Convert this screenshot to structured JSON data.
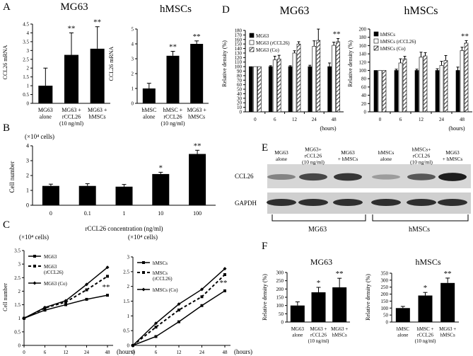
{
  "panels": {
    "A": "A",
    "B": "B",
    "C": "C",
    "D": "D",
    "E": "E",
    "F": "F"
  },
  "chart_data": [
    {
      "id": "A1",
      "type": "bar",
      "title": "MG63",
      "ylabel": "CCL26 mRNA",
      "ylim": [
        0,
        4.5
      ],
      "yticks": [
        "0",
        "0.5",
        "1",
        "1.5",
        "2",
        "2.5",
        "3",
        "3.5",
        "4",
        "4.5"
      ],
      "categories": [
        [
          "MG63",
          "alone"
        ],
        [
          "MG63 +",
          "rCCL26",
          "(10 ng/ml)"
        ],
        [
          "MG63 +",
          "hMSCs"
        ]
      ],
      "values": [
        1.0,
        2.75,
        3.1
      ],
      "errors": [
        1.0,
        1.25,
        1.25
      ],
      "sig": [
        "",
        "**",
        "**"
      ]
    },
    {
      "id": "A2",
      "type": "bar",
      "title": "hMSCs",
      "ylabel": "CCL26 mRNA",
      "ylim": [
        0,
        5
      ],
      "yticks": [
        "0",
        "1",
        "2",
        "3",
        "4",
        "5"
      ],
      "categories": [
        [
          "hMSC",
          "alone"
        ],
        [
          "hMSC +",
          "rCCL26",
          "(10 ng/ml)"
        ],
        [
          "MG63 +",
          "hMSCs"
        ]
      ],
      "values": [
        1.0,
        3.2,
        4.0
      ],
      "errors": [
        0.35,
        0.3,
        0.2
      ],
      "sig": [
        "",
        "**",
        "**"
      ]
    },
    {
      "id": "B",
      "type": "bar",
      "unit_note": "(×10⁴ cells)",
      "ylabel": "Cell number",
      "xlabel": "rCCL26 concentration (ng/ml)",
      "ylim": [
        0,
        4
      ],
      "yticks": [
        "0",
        "1",
        "2",
        "3",
        "4"
      ],
      "categories": [
        "0",
        "0.1",
        "1",
        "10",
        "100"
      ],
      "values": [
        1.3,
        1.3,
        1.25,
        2.1,
        3.45
      ],
      "errors": [
        0.12,
        0.15,
        0.15,
        0.12,
        0.25
      ],
      "sig": [
        "",
        "",
        "",
        "*",
        "**"
      ]
    },
    {
      "id": "C1",
      "type": "line",
      "unit_note": "(×10⁴ cells)",
      "ylabel": "Cell number",
      "xlabel": "(hours)",
      "ylim": [
        0,
        3.5
      ],
      "yticks": [
        "0",
        "0.5",
        "1",
        "1.5",
        "2",
        "2.5",
        "3",
        "3.5"
      ],
      "x": [
        "0",
        "6",
        "12",
        "24",
        "48"
      ],
      "series": [
        {
          "name": "MG63",
          "values": [
            1.0,
            1.3,
            1.5,
            1.7,
            1.85
          ],
          "style": "solid",
          "marker": "square"
        },
        {
          "name": "MG63 (rCCL26)",
          "values": [
            1.0,
            1.38,
            1.6,
            2.05,
            2.55
          ],
          "style": "dashed",
          "marker": "square"
        },
        {
          "name": "MG63 (Co)",
          "values": [
            1.0,
            1.4,
            1.65,
            2.25,
            2.88
          ],
          "style": "solid",
          "marker": "diamond"
        }
      ],
      "sig": "**"
    },
    {
      "id": "C2",
      "type": "line",
      "unit_note": "(×10⁴ cells)",
      "xlabel": "(hours)",
      "ylim": [
        0,
        3
      ],
      "yticks": [
        "0",
        "0.5",
        "1",
        "1.5",
        "2",
        "2.5",
        "3"
      ],
      "x": [
        "0",
        "6",
        "12",
        "24",
        "48"
      ],
      "series": [
        {
          "name": "hMSCs",
          "values": [
            0.0,
            0.3,
            0.8,
            1.35,
            1.85
          ],
          "style": "solid",
          "marker": "square"
        },
        {
          "name": "hMSCs (rCCL26)",
          "values": [
            0.0,
            0.62,
            1.2,
            1.65,
            2.4
          ],
          "style": "dashed",
          "marker": "square"
        },
        {
          "name": "hMSCs (Co)",
          "values": [
            0.0,
            0.75,
            1.4,
            1.9,
            2.6
          ],
          "style": "solid",
          "marker": "diamond"
        }
      ],
      "sig": "**"
    },
    {
      "id": "D1",
      "type": "bar",
      "title": "MG63",
      "ylabel": "Relative density (%)",
      "xlabel": "(hours)",
      "ylim": [
        0,
        180
      ],
      "yticks": [
        "0",
        "10",
        "20",
        "30",
        "40",
        "50",
        "60",
        "70",
        "80",
        "90",
        "100",
        "110",
        "120",
        "130",
        "140",
        "150",
        "160",
        "170",
        "180"
      ],
      "categories": [
        "0",
        "6",
        "12",
        "24",
        "48"
      ],
      "series": [
        {
          "name": "MG63",
          "values": [
            100,
            100,
            100,
            100,
            100
          ],
          "errors": [
            0,
            2,
            2,
            3,
            8
          ],
          "fill": "black"
        },
        {
          "name": "MG63 (rCCL26)",
          "values": [
            100,
            115,
            130,
            145,
            147
          ],
          "errors": [
            0,
            8,
            5,
            12,
            7
          ],
          "fill": "white"
        },
        {
          "name": "MG63 (Co)",
          "values": [
            100,
            117,
            150,
            158,
            155
          ],
          "errors": [
            0,
            8,
            5,
            25,
            7
          ],
          "fill": "hatch"
        }
      ],
      "sig": "**"
    },
    {
      "id": "D2",
      "type": "bar",
      "title": "hMSCs",
      "ylabel": "Relative density (%)",
      "xlabel": "(hours)",
      "ylim": [
        0,
        200
      ],
      "yticks": [
        "0",
        "20",
        "40",
        "60",
        "80",
        "100",
        "120",
        "140",
        "160",
        "180",
        "200"
      ],
      "categories": [
        "0",
        "6",
        "12",
        "24",
        "48"
      ],
      "series": [
        {
          "name": "hMSCs",
          "values": [
            100,
            100,
            100,
            100,
            100
          ],
          "errors": [
            0,
            3,
            3,
            4,
            8
          ],
          "fill": "black"
        },
        {
          "name": "hMSCs (rCCL26)",
          "values": [
            100,
            118,
            132,
            112,
            148
          ],
          "errors": [
            0,
            10,
            12,
            10,
            8
          ],
          "fill": "white"
        },
        {
          "name": "hMSCs (Co)",
          "values": [
            100,
            128,
            135,
            124,
            166
          ],
          "errors": [
            0,
            6,
            8,
            12,
            6
          ],
          "fill": "hatch"
        }
      ],
      "sig": "**"
    },
    {
      "id": "F1",
      "type": "bar",
      "title": "MG63",
      "ylabel": "Relative density (%)",
      "ylim": [
        0,
        300
      ],
      "yticks": [
        "0",
        "50",
        "100",
        "150",
        "200",
        "250",
        "300"
      ],
      "categories": [
        [
          "MG63",
          "alone"
        ],
        [
          "MG63 +",
          "rCCL26",
          "(10 ng/ml)"
        ],
        [
          "MG63 +",
          "hMSCs"
        ]
      ],
      "values": [
        100,
        180,
        210
      ],
      "errors": [
        22,
        30,
        55
      ],
      "sig": [
        "",
        "*",
        "**"
      ]
    },
    {
      "id": "F2",
      "type": "bar",
      "title": "hMSCs",
      "ylabel": "Relative density (%)",
      "ylim": [
        0,
        350
      ],
      "yticks": [
        "0",
        "50",
        "100",
        "150",
        "200",
        "250",
        "300",
        "350"
      ],
      "categories": [
        [
          "hMSC",
          "alone"
        ],
        [
          "hMSC +",
          "rCCL26",
          "(10 ng/ml)"
        ],
        [
          "MG63 +",
          "hMSCs"
        ]
      ],
      "values": [
        100,
        190,
        280
      ],
      "errors": [
        12,
        22,
        35
      ],
      "sig": [
        "",
        "*",
        "**"
      ]
    }
  ],
  "blot": {
    "lanes": [
      [
        "MG63",
        "alone"
      ],
      [
        "MG63+",
        "rCCL26",
        "(10 ng/ml)"
      ],
      [
        "MG63",
        "+ hMSCs"
      ],
      [
        "hMSCs",
        "alone"
      ],
      [
        "hMSCs+",
        "rCCL26",
        "(10 ng/ml)"
      ],
      [
        "MG63",
        "+ hMSCs"
      ]
    ],
    "rows": [
      "CCL26",
      "GAPDH"
    ],
    "groups": [
      "MG63",
      "hMSCs"
    ],
    "ccl26_intensity": [
      0.35,
      0.7,
      0.8,
      0.2,
      0.6,
      0.95
    ],
    "gapdh_intensity": [
      0.85,
      0.85,
      0.85,
      0.85,
      0.85,
      0.85
    ]
  }
}
